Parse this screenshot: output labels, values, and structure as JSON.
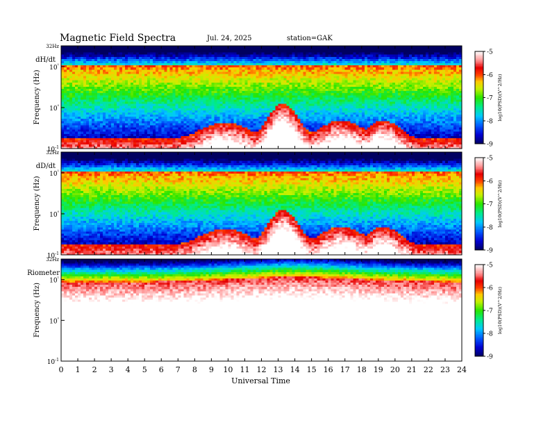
{
  "header": {
    "title": "Magnetic  Field  Spectra",
    "date": "Jul.  24, 2025",
    "station": "station=GAK"
  },
  "chart_data": [
    {
      "type": "heatmap",
      "panel_label": "dH/dt",
      "xlabel": "",
      "ylabel": "Frequency  (Hz)",
      "top_label": "32Hz",
      "xlim": [
        0,
        24
      ],
      "ylim": [
        0.1,
        32
      ],
      "y_scale": "log",
      "y_ticks": [
        {
          "value": 0.1,
          "label": "10-1"
        },
        {
          "value": 1,
          "label": "10⁰"
        },
        {
          "value": 10,
          "label": "10¹"
        }
      ],
      "colorbar": {
        "label": "log10(PSD)(V^2/Hz)",
        "range": [
          -9,
          -5
        ],
        "ticks": [
          -9,
          -8,
          -7,
          -6,
          -5
        ]
      },
      "profile": "hd"
    },
    {
      "type": "heatmap",
      "panel_label": "dD/dt",
      "xlabel": "",
      "ylabel": "Frequency  (Hz)",
      "top_label": "32Hz",
      "xlim": [
        0,
        24
      ],
      "ylim": [
        0.1,
        32
      ],
      "y_scale": "log",
      "y_ticks": [
        {
          "value": 0.1,
          "label": "10-1"
        },
        {
          "value": 1,
          "label": "10⁰"
        },
        {
          "value": 10,
          "label": "10¹"
        }
      ],
      "colorbar": {
        "label": "log10(PSD)(V^2/Hz)",
        "range": [
          -9,
          -5
        ],
        "ticks": [
          -9,
          -8,
          -7,
          -6,
          -5
        ]
      },
      "profile": "hd"
    },
    {
      "type": "heatmap",
      "panel_label": "Riometer",
      "xlabel": "Universal Time",
      "ylabel": "Frequency  (Hz)",
      "top_label": "32Hz",
      "xlim": [
        0,
        24
      ],
      "x_ticks": [
        0,
        1,
        2,
        3,
        4,
        5,
        6,
        7,
        8,
        9,
        10,
        11,
        12,
        13,
        14,
        15,
        16,
        17,
        18,
        19,
        20,
        21,
        22,
        23,
        24
      ],
      "ylim": [
        0.1,
        32
      ],
      "y_scale": "log",
      "y_ticks": [
        {
          "value": 0.1,
          "label": "10-1"
        },
        {
          "value": 1,
          "label": "10⁰"
        },
        {
          "value": 10,
          "label": "10¹"
        }
      ],
      "colorbar": {
        "label": "log10(PSD)(V^2/Hz)",
        "range": [
          -9,
          -5
        ],
        "ticks": [
          -9,
          -8,
          -7,
          -6,
          -5
        ]
      },
      "profile": "rio"
    }
  ]
}
